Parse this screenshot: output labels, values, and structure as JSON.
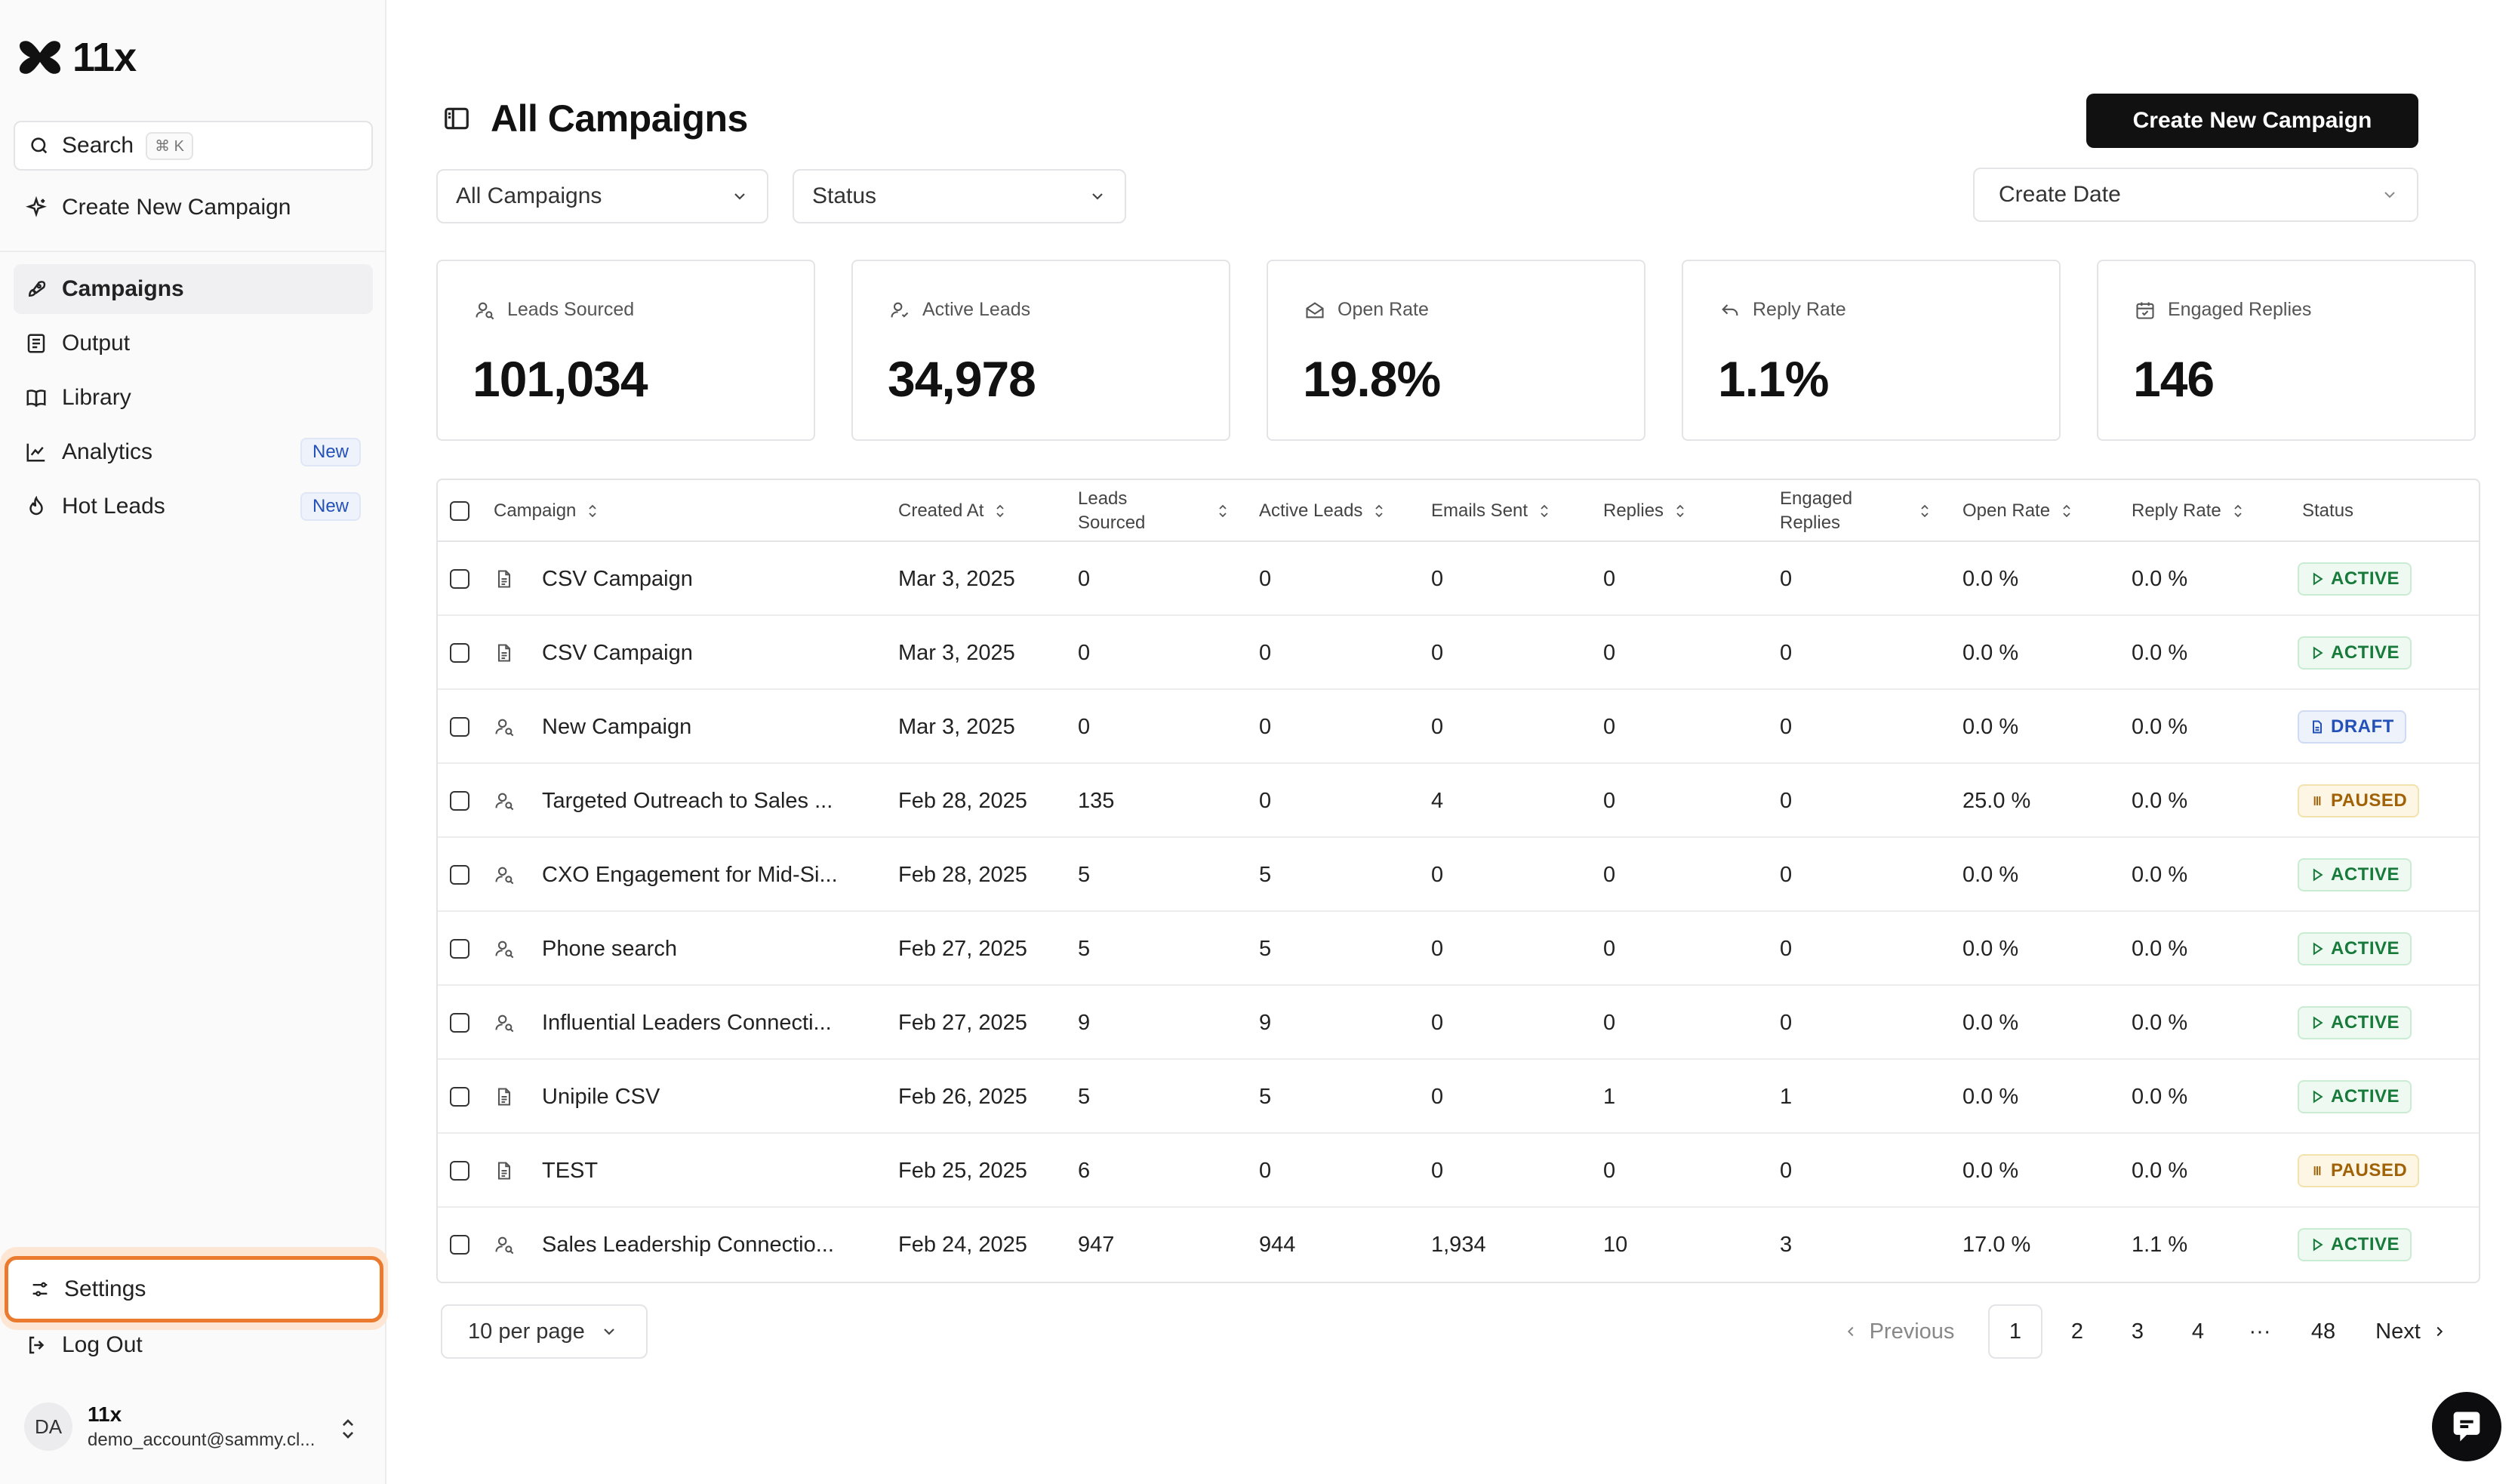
{
  "app": {
    "name": "11x"
  },
  "sidebar": {
    "search": {
      "label": "Search",
      "shortcut": "⌘ K"
    },
    "create_campaign": "Create New Campaign",
    "nav": [
      {
        "label": "Campaigns",
        "icon": "rocket-icon",
        "active": true
      },
      {
        "label": "Output",
        "icon": "document-list-icon"
      },
      {
        "label": "Library",
        "icon": "book-icon"
      },
      {
        "label": "Analytics",
        "icon": "line-chart-icon",
        "badge": "New"
      },
      {
        "label": "Hot Leads",
        "icon": "flame-icon",
        "badge": "New"
      }
    ],
    "settings": "Settings",
    "logout": "Log Out",
    "account": {
      "initials": "DA",
      "name": "11x",
      "email": "demo_account@sammy.cl..."
    }
  },
  "header": {
    "title": "All Campaigns",
    "create_button": "Create New Campaign",
    "filters": {
      "campaigns": "All Campaigns",
      "status": "Status",
      "date": "Create Date"
    }
  },
  "stats": [
    {
      "label": "Leads Sourced",
      "value": "101,034",
      "icon": "user-search-icon"
    },
    {
      "label": "Active Leads",
      "value": "34,978",
      "icon": "user-check-icon"
    },
    {
      "label": "Open Rate",
      "value": "19.8%",
      "icon": "mail-open-icon"
    },
    {
      "label": "Reply Rate",
      "value": "1.1%",
      "icon": "reply-icon"
    },
    {
      "label": "Engaged Replies",
      "value": "146",
      "icon": "calendar-check-icon"
    }
  ],
  "table": {
    "columns": {
      "campaign": "Campaign",
      "created_at": "Created At",
      "leads_sourced_1": "Leads",
      "leads_sourced_2": "Sourced",
      "active_leads": "Active Leads",
      "emails_sent": "Emails Sent",
      "replies": "Replies",
      "engaged_1": "Engaged",
      "engaged_2": "Replies",
      "open_rate": "Open Rate",
      "reply_rate": "Reply Rate",
      "status": "Status"
    },
    "rows": [
      {
        "icon": "file-icon",
        "name": "CSV Campaign",
        "created": "Mar 3, 2025",
        "leads": "0",
        "active": "0",
        "sent": "0",
        "replies": "0",
        "engaged": "0",
        "open": "0.0 %",
        "reply": "0.0 %",
        "status": "ACTIVE",
        "status_type": "active"
      },
      {
        "icon": "file-icon",
        "name": "CSV Campaign",
        "created": "Mar 3, 2025",
        "leads": "0",
        "active": "0",
        "sent": "0",
        "replies": "0",
        "engaged": "0",
        "open": "0.0 %",
        "reply": "0.0 %",
        "status": "ACTIVE",
        "status_type": "active"
      },
      {
        "icon": "user-search-icon",
        "name": "New Campaign",
        "created": "Mar 3, 2025",
        "leads": "0",
        "active": "0",
        "sent": "0",
        "replies": "0",
        "engaged": "0",
        "open": "0.0 %",
        "reply": "0.0 %",
        "status": "DRAFT",
        "status_type": "draft"
      },
      {
        "icon": "user-search-icon",
        "name": "Targeted Outreach to Sales ...",
        "created": "Feb 28, 2025",
        "leads": "135",
        "active": "0",
        "sent": "4",
        "replies": "0",
        "engaged": "0",
        "open": "25.0 %",
        "reply": "0.0 %",
        "status": "PAUSED",
        "status_type": "paused"
      },
      {
        "icon": "user-search-icon",
        "name": "CXO Engagement for Mid-Si...",
        "created": "Feb 28, 2025",
        "leads": "5",
        "active": "5",
        "sent": "0",
        "replies": "0",
        "engaged": "0",
        "open": "0.0 %",
        "reply": "0.0 %",
        "status": "ACTIVE",
        "status_type": "active"
      },
      {
        "icon": "user-search-icon",
        "name": "Phone search",
        "created": "Feb 27, 2025",
        "leads": "5",
        "active": "5",
        "sent": "0",
        "replies": "0",
        "engaged": "0",
        "open": "0.0 %",
        "reply": "0.0 %",
        "status": "ACTIVE",
        "status_type": "active"
      },
      {
        "icon": "user-search-icon",
        "name": "Influential Leaders Connecti...",
        "created": "Feb 27, 2025",
        "leads": "9",
        "active": "9",
        "sent": "0",
        "replies": "0",
        "engaged": "0",
        "open": "0.0 %",
        "reply": "0.0 %",
        "status": "ACTIVE",
        "status_type": "active"
      },
      {
        "icon": "file-icon",
        "name": "Unipile CSV",
        "created": "Feb 26, 2025",
        "leads": "5",
        "active": "5",
        "sent": "0",
        "replies": "1",
        "engaged": "1",
        "open": "0.0 %",
        "reply": "0.0 %",
        "status": "ACTIVE",
        "status_type": "active"
      },
      {
        "icon": "file-icon",
        "name": "TEST",
        "created": "Feb 25, 2025",
        "leads": "6",
        "active": "0",
        "sent": "0",
        "replies": "0",
        "engaged": "0",
        "open": "0.0 %",
        "reply": "0.0 %",
        "status": "PAUSED",
        "status_type": "paused"
      },
      {
        "icon": "user-search-icon",
        "name": "Sales Leadership Connectio...",
        "created": "Feb 24, 2025",
        "leads": "947",
        "active": "944",
        "sent": "1,934",
        "replies": "10",
        "engaged": "3",
        "open": "17.0 %",
        "reply": "1.1 %",
        "status": "ACTIVE",
        "status_type": "active"
      }
    ]
  },
  "pagination": {
    "per_page": "10 per page",
    "previous": "Previous",
    "pages": [
      "1",
      "2",
      "3",
      "4"
    ],
    "ellipsis": "···",
    "last": "48",
    "next": "Next",
    "current": "1"
  }
}
